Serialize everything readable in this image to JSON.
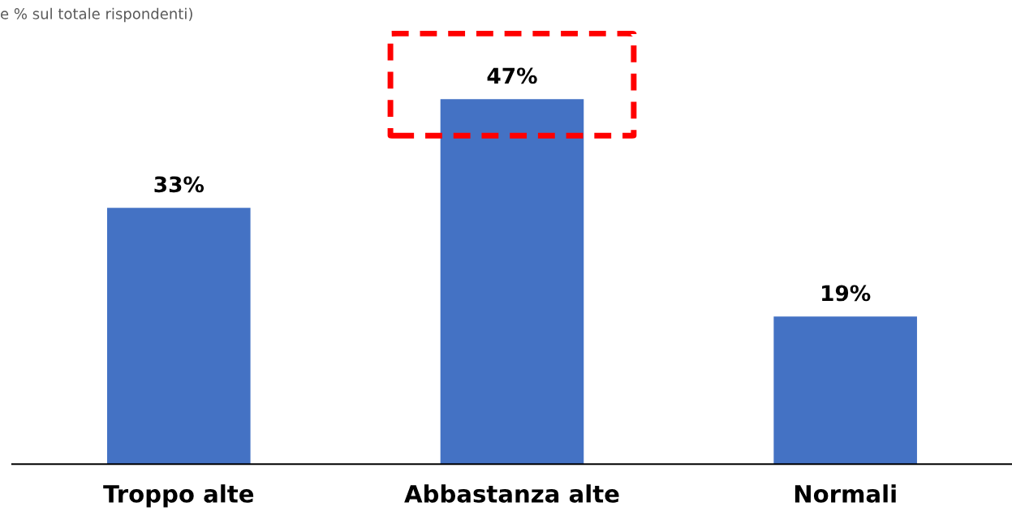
{
  "chart_data": {
    "type": "bar",
    "subtitle": "e % sul totale rispondenti)",
    "categories": [
      "Troppo alte",
      "Abbastanza alte",
      "Normali"
    ],
    "values": [
      33,
      47,
      19
    ],
    "color": "#4472c4",
    "data_labels": true,
    "value_labels": [
      "33%",
      "47%",
      "19%"
    ],
    "grid": false
  }
}
